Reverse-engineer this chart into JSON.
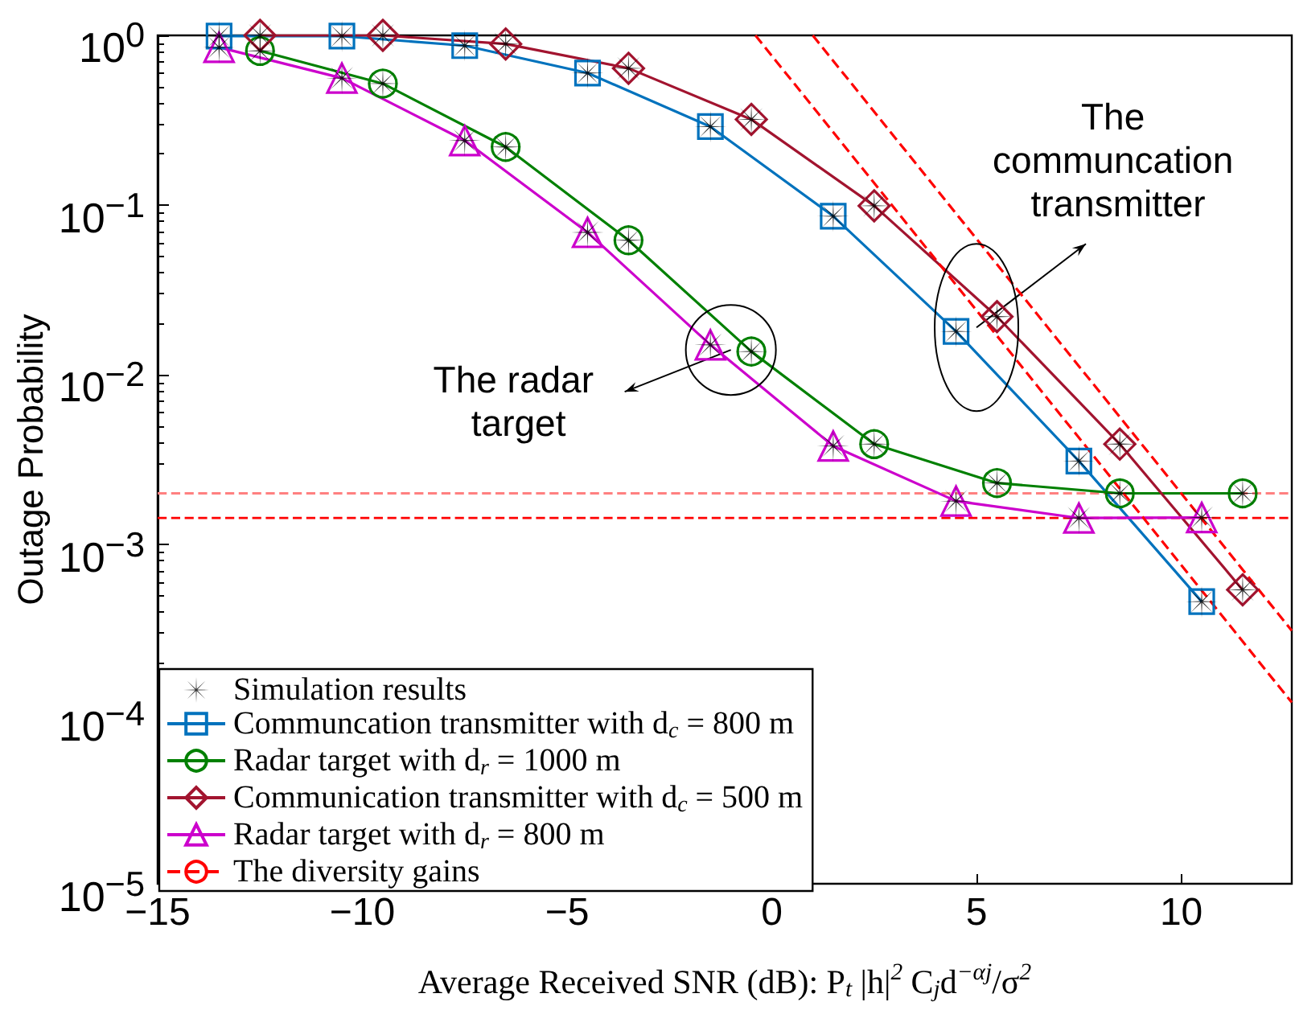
{
  "chart_data": {
    "type": "line",
    "xlabel": "Average Received SNR (dB): P$_{t}$ |h|$^{2}$ C$_{j}$d$^{−αj}$/σ$^{2}$",
    "ylabel": "Outage Probability",
    "xlim": [
      -15,
      12.7
    ],
    "xticks": [
      -15,
      -10,
      -5,
      0,
      5,
      10
    ],
    "ylim": [
      1e-05,
      1
    ],
    "yticks": [
      {
        "value": 1,
        "label": "10$^{0}$"
      },
      {
        "value": 0.1,
        "label": "10$^{−1}$"
      },
      {
        "value": 0.01,
        "label": "10$^{−2}$"
      },
      {
        "value": 0.001,
        "label": "10$^{−3}$"
      },
      {
        "value": 0.0001,
        "label": "10$^{−4}$"
      },
      {
        "value": 1e-05,
        "label": "10$^{−5}$"
      }
    ],
    "log": "y",
    "legend": "bottom left",
    "series": [
      {
        "name": "Simulation results",
        "type": "scatter",
        "marker": "star",
        "color": "#000000",
        "x": [
          -13.5,
          -10.5,
          -7.5,
          -4.5,
          -1.5,
          1.5,
          4.5,
          7.5,
          10.5,
          -12.5,
          -9.5,
          -6.5,
          -3.5,
          -0.5,
          2.5,
          5.5,
          8.5,
          11.5,
          -12.5,
          -9.5,
          -6.5,
          -3.5,
          -0.5,
          2.5,
          5.5,
          8.5,
          11.5,
          -13.5,
          -10.5,
          -7.5,
          -4.5,
          -1.5,
          1.5,
          4.5,
          7.5,
          10.5
        ],
        "values": [
          0.99,
          0.99,
          0.87,
          0.6,
          0.29,
          0.086,
          0.018,
          0.0031,
          0.00046,
          1.0,
          1.0,
          0.89,
          0.64,
          0.32,
          0.099,
          0.022,
          0.0039,
          0.00054,
          0.81,
          0.52,
          0.22,
          0.062,
          0.0137,
          0.0039,
          0.0023,
          0.002,
          0.002,
          0.85,
          0.56,
          0.24,
          0.069,
          0.015,
          0.0038,
          0.0018,
          0.00143,
          0.00144
        ]
      },
      {
        "name": "Communcation transmitter with d$_{c}$ = 800 m",
        "marker": "square",
        "color": "#0072bd",
        "x": [
          -13.5,
          -10.5,
          -7.5,
          -4.5,
          -1.5,
          1.5,
          4.5,
          7.5,
          10.5
        ],
        "values": [
          0.99,
          0.99,
          0.87,
          0.6,
          0.29,
          0.086,
          0.018,
          0.0031,
          0.00046
        ]
      },
      {
        "name": "Radar target with d$_{r}$ = 1000 m",
        "marker": "circle",
        "color": "#008000",
        "x": [
          -12.5,
          -9.5,
          -6.5,
          -3.5,
          -0.5,
          2.5,
          5.5,
          8.5,
          11.5
        ],
        "values": [
          0.81,
          0.52,
          0.22,
          0.062,
          0.0137,
          0.0039,
          0.0023,
          0.002,
          0.002
        ]
      },
      {
        "name": "Communication transmitter with d$_{c}$ = 500 m",
        "marker": "diamond",
        "color": "#a2142f",
        "x": [
          -12.5,
          -9.5,
          -6.5,
          -3.5,
          -0.5,
          2.5,
          5.5,
          8.5,
          11.5
        ],
        "values": [
          1.0,
          1.0,
          0.89,
          0.64,
          0.32,
          0.099,
          0.022,
          0.0039,
          0.00054
        ]
      },
      {
        "name": "Radar target with d$_{r}$ = 800 m",
        "marker": "triangle",
        "color": "#cc00cc",
        "x": [
          -13.5,
          -10.5,
          -7.5,
          -4.5,
          -1.5,
          1.5,
          4.5,
          7.5,
          10.5
        ],
        "values": [
          0.85,
          0.56,
          0.24,
          0.069,
          0.015,
          0.0038,
          0.0018,
          0.00143,
          0.00144
        ]
      },
      {
        "name": "The diversity gains",
        "marker": "none",
        "line_style": "dashed",
        "color": "#ff0000",
        "x": [
          -0.4,
          12.7
        ],
        "values": [
          1,
          0.000117
        ]
      },
      {
        "marker": "none",
        "line_style": "dashed",
        "color": "#ff0000",
        "x": [
          1.0,
          12.7
        ],
        "values": [
          1,
          0.00031
        ]
      }
    ],
    "ref_lines": [
      {
        "axis": "y",
        "value": 0.002,
        "color": "#ff8080",
        "line_style": "dashed"
      },
      {
        "axis": "y",
        "value": 0.00143,
        "color": "#ff0000",
        "line_style": "dashed"
      }
    ],
    "annotations": [
      {
        "text": "The radar target",
        "x": -1,
        "y": 0.014
      },
      {
        "text": "The communcation transmitter",
        "x": 5,
        "y": 0.019
      }
    ]
  }
}
